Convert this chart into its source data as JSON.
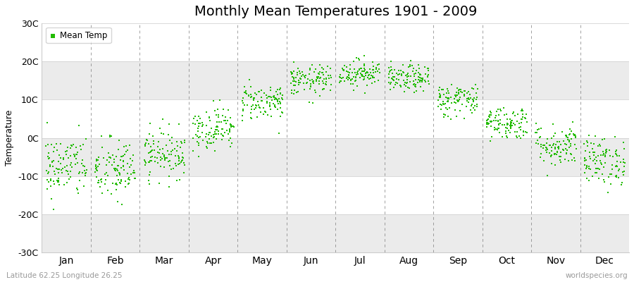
{
  "title": "Monthly Mean Temperatures 1901 - 2009",
  "ylabel": "Temperature",
  "footer_left": "Latitude 62.25 Longitude 26.25",
  "footer_right": "worldspecies.org",
  "legend_label": "Mean Temp",
  "marker_color": "#22bb00",
  "background_color": "#ffffff",
  "plot_bg_color": "#ffffff",
  "band_color": "#ebebeb",
  "dashed_line_color": "#777777",
  "ylim": [
    -30,
    30
  ],
  "yticks": [
    -30,
    -20,
    -10,
    0,
    10,
    20,
    30
  ],
  "ytick_labels": [
    "-30C",
    "-20C",
    "-10C",
    "0C",
    "10C",
    "20C",
    "30C"
  ],
  "months": [
    "Jan",
    "Feb",
    "Mar",
    "Apr",
    "May",
    "Jun",
    "Jul",
    "Aug",
    "Sep",
    "Oct",
    "Nov",
    "Dec"
  ],
  "month_means": [
    -7.5,
    -8.5,
    -4.0,
    2.5,
    9.5,
    15.0,
    17.0,
    15.5,
    10.0,
    4.0,
    -2.0,
    -6.0
  ],
  "month_stds": [
    4.2,
    4.2,
    3.2,
    2.8,
    2.4,
    2.0,
    1.8,
    1.8,
    2.2,
    2.2,
    2.8,
    3.2
  ],
  "n_years": 109,
  "seed": 42,
  "marker_size": 4,
  "title_fontsize": 14,
  "axis_fontsize": 9,
  "xlabel_fontsize": 10
}
